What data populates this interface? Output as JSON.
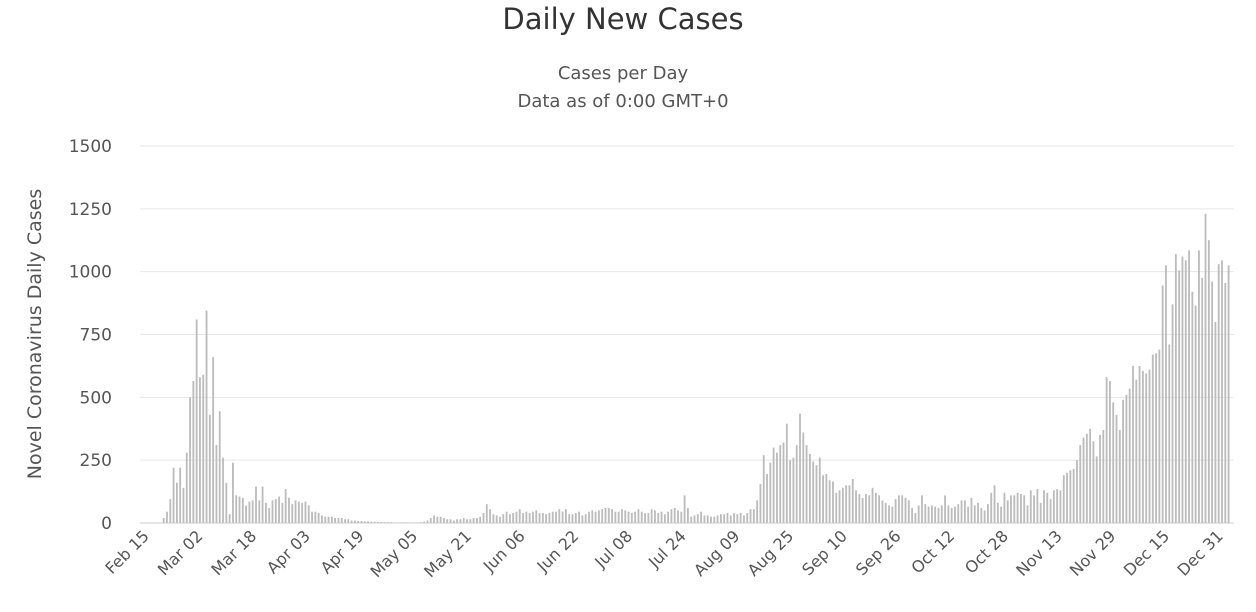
{
  "chart_data": {
    "type": "bar",
    "title": "Daily New Cases",
    "subtitle": [
      "Cases per Day",
      "Data as of 0:00 GMT+0"
    ],
    "xlabel": "",
    "ylabel": "Novel Coronavirus Daily Cases",
    "ylim": [
      0,
      1500
    ],
    "yticks": [
      0,
      250,
      500,
      750,
      1000,
      1250,
      1500
    ],
    "xticks": [
      "Feb 15",
      "Mar 02",
      "Mar 18",
      "Apr 03",
      "Apr 19",
      "May 05",
      "May 21",
      "Jun 06",
      "Jun 22",
      "Jul 08",
      "Jul 24",
      "Aug 09",
      "Aug 25",
      "Sep 10",
      "Sep 26",
      "Oct 12",
      "Oct 28",
      "Nov 13",
      "Nov 29",
      "Dec 15",
      "Dec 31"
    ],
    "x_start": "Feb 15",
    "x_end": "Dec 31",
    "grid": true,
    "bar_color": "#bbbbbb",
    "values": [
      0,
      0,
      0,
      0,
      0,
      0,
      20,
      45,
      95,
      220,
      160,
      220,
      140,
      280,
      500,
      565,
      810,
      580,
      590,
      845,
      430,
      660,
      310,
      445,
      260,
      160,
      35,
      240,
      110,
      105,
      100,
      70,
      85,
      90,
      145,
      90,
      145,
      80,
      60,
      90,
      95,
      105,
      80,
      135,
      100,
      75,
      90,
      85,
      80,
      85,
      70,
      45,
      45,
      40,
      30,
      25,
      25,
      25,
      20,
      20,
      20,
      15,
      15,
      10,
      10,
      8,
      8,
      6,
      6,
      5,
      5,
      4,
      4,
      3,
      3,
      3,
      2,
      2,
      2,
      2,
      2,
      2,
      2,
      2,
      3,
      5,
      10,
      20,
      30,
      25,
      25,
      20,
      15,
      15,
      10,
      15,
      15,
      20,
      15,
      15,
      20,
      20,
      25,
      40,
      75,
      55,
      35,
      30,
      25,
      35,
      45,
      35,
      40,
      45,
      55,
      40,
      45,
      40,
      45,
      50,
      40,
      40,
      35,
      40,
      45,
      45,
      55,
      45,
      55,
      35,
      35,
      40,
      45,
      30,
      35,
      45,
      50,
      45,
      50,
      55,
      60,
      60,
      55,
      45,
      45,
      55,
      50,
      45,
      40,
      45,
      55,
      45,
      40,
      40,
      55,
      50,
      40,
      45,
      35,
      45,
      55,
      60,
      50,
      45,
      110,
      60,
      25,
      30,
      35,
      45,
      30,
      30,
      25,
      25,
      30,
      35,
      35,
      40,
      30,
      40,
      35,
      40,
      30,
      40,
      55,
      55,
      90,
      155,
      270,
      195,
      240,
      300,
      280,
      310,
      320,
      395,
      250,
      260,
      310,
      435,
      360,
      310,
      275,
      245,
      230,
      260,
      190,
      195,
      170,
      165,
      120,
      130,
      140,
      150,
      150,
      175,
      130,
      115,
      100,
      115,
      110,
      140,
      120,
      110,
      90,
      80,
      70,
      65,
      95,
      110,
      110,
      100,
      90,
      60,
      40,
      70,
      110,
      75,
      65,
      70,
      65,
      60,
      70,
      110,
      70,
      60,
      65,
      75,
      90,
      90,
      65,
      100,
      70,
      80,
      60,
      50,
      75,
      120,
      150,
      80,
      65,
      120,
      90,
      110,
      110,
      120,
      115,
      110,
      70,
      130,
      110,
      135,
      80,
      130,
      120,
      95,
      130,
      135,
      130,
      190,
      200,
      210,
      215,
      250,
      310,
      340,
      355,
      375,
      325,
      265,
      350,
      370,
      580,
      565,
      480,
      430,
      370,
      490,
      510,
      535,
      625,
      570,
      625,
      605,
      595,
      610,
      670,
      675,
      690,
      945,
      1025,
      710,
      870,
      1070,
      1005,
      1060,
      1045,
      1085,
      920,
      865,
      1085,
      975,
      1230,
      1125,
      960,
      800,
      1030,
      1045,
      955,
      1025
    ]
  }
}
